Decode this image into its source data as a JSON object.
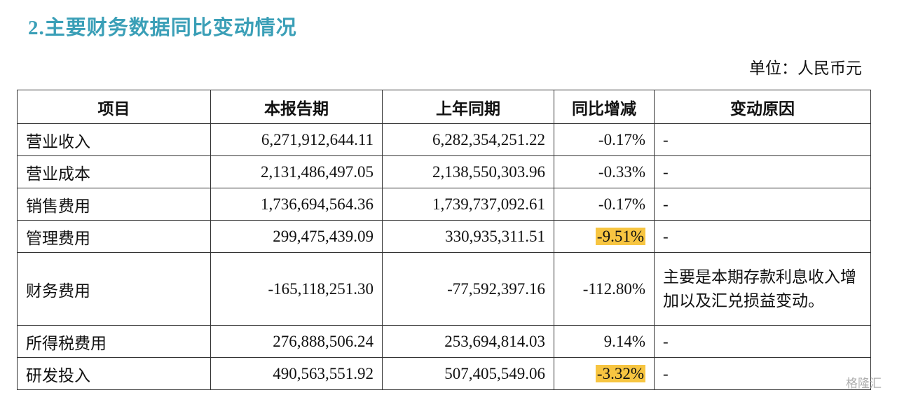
{
  "header": {
    "title": "2.主要财务数据同比变动情况",
    "unit": "单位：人民币元"
  },
  "table": {
    "columns": [
      "项目",
      "本报告期",
      "上年同期",
      "同比增减",
      "变动原因"
    ],
    "rows": [
      [
        "营业收入",
        "6,271,912,644.11",
        "6,282,354,251.22",
        "-0.17%",
        "-"
      ],
      [
        "营业成本",
        "2,131,486,497.05",
        "2,138,550,303.96",
        "-0.33%",
        "-"
      ],
      [
        "销售费用",
        "1,736,694,564.36",
        "1,739,737,092.61",
        "-0.17%",
        "-"
      ],
      [
        "管理费用",
        "299,475,439.09",
        "330,935,311.51",
        "-9.51%",
        "-"
      ],
      [
        "财务费用",
        "-165,118,251.30",
        "-77,592,397.16",
        "-112.80%",
        "主要是本期存款利息收入增加以及汇兑损益变动。"
      ],
      [
        "所得税费用",
        "276,888,506.24",
        "253,694,814.03",
        "9.14%",
        "-"
      ],
      [
        "研发投入",
        "490,563,551.92",
        "507,405,549.06",
        "-3.32%",
        "-"
      ]
    ]
  },
  "watermark": "格隆汇"
}
